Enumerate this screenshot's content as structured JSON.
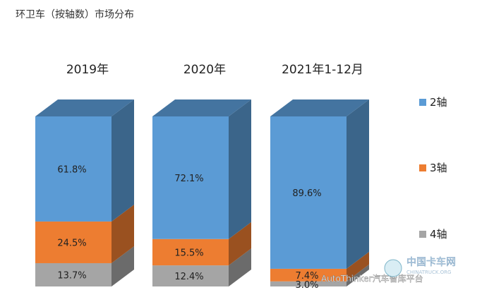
{
  "chart_data": {
    "type": "bar",
    "title": "环卫车（按轴数）市场分布",
    "stacked": true,
    "normalized_percent": true,
    "categories": [
      "2019年",
      "2020年",
      "2021年1-12月"
    ],
    "series": [
      {
        "name": "2轴",
        "values": [
          61.8,
          72.1,
          89.6
        ],
        "labels": [
          "61.8%",
          "72.1%",
          "89.6%"
        ],
        "color": "#5b9bd5"
      },
      {
        "name": "3轴",
        "values": [
          24.5,
          15.5,
          7.4
        ],
        "labels": [
          "24.5%",
          "15.5%",
          "7.4%"
        ],
        "color": "#ed7d31"
      },
      {
        "name": "4轴",
        "values": [
          13.7,
          12.4,
          3.0
        ],
        "labels": [
          "13.7%",
          "12.4%",
          "3.0%"
        ],
        "color": "#a5a5a5"
      }
    ],
    "legend_position": "right",
    "grid": false
  },
  "watermark": {
    "wechat": "AutoThinker汽车智库平台",
    "logo": "中国卡车网",
    "logo_sub": "CHINATRUCK.ORG"
  }
}
